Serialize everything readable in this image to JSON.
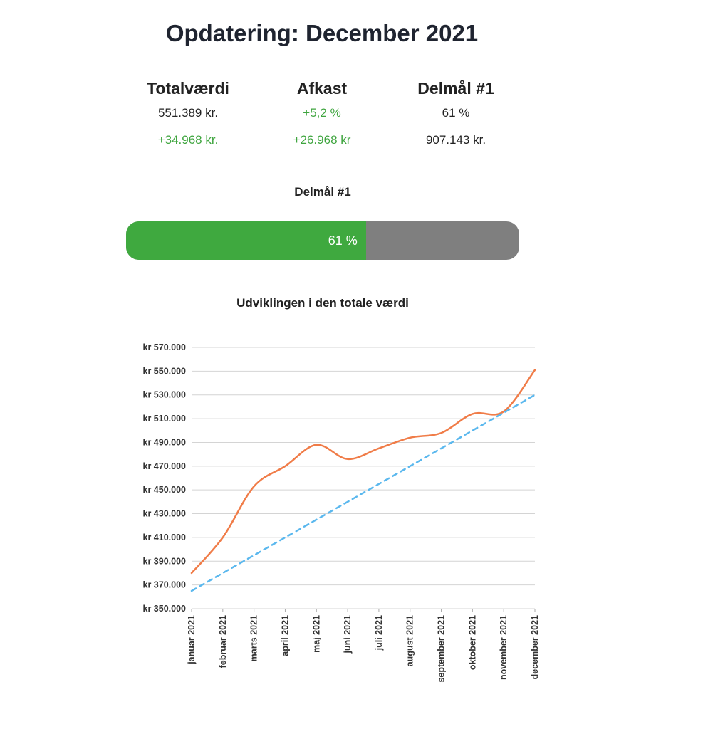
{
  "header": {
    "title": "Opdatering: December 2021"
  },
  "stats": [
    {
      "heading": "Totalværdi",
      "line1": "551.389 kr.",
      "line1_positive": false,
      "line2": "+34.968 kr.",
      "line2_positive": true
    },
    {
      "heading": "Afkast",
      "line1": "+5,2 %",
      "line1_positive": true,
      "line2": "+26.968 kr",
      "line2_positive": true
    },
    {
      "heading": "Delmål #1",
      "line1": "61 %",
      "line1_positive": false,
      "line2": "907.143 kr.",
      "line2_positive": false
    }
  ],
  "goal": {
    "label": "Delmål #1",
    "progress": 0.61,
    "progress_text": "61 %",
    "fill_color": "#3fa93f",
    "track_color": "#7f7f7f"
  },
  "chart_title": "Udviklingen i den totale værdi",
  "chart_data": {
    "type": "line",
    "title": "Udviklingen i den totale værdi",
    "xlabel": "",
    "ylabel": "",
    "categories": [
      "januar 2021",
      "februar 2021",
      "marts 2021",
      "april 2021",
      "maj 2021",
      "juni 2021",
      "juli 2021",
      "august 2021",
      "september 2021",
      "oktober 2021",
      "november 2021",
      "december 2021"
    ],
    "series": [
      {
        "style": "solid",
        "color": "#f07c48",
        "values": [
          380000,
          410000,
          453000,
          470000,
          488000,
          476000,
          485000,
          494000,
          498000,
          514000,
          516000,
          551000
        ]
      },
      {
        "style": "dashed",
        "color": "#5bb8ee",
        "values": [
          365000,
          380000,
          395000,
          410000,
          425000,
          440000,
          455000,
          470000,
          485000,
          500000,
          515000,
          530000
        ]
      }
    ],
    "ylim": [
      350000,
      570000
    ],
    "yticks": [
      350000,
      370000,
      390000,
      410000,
      430000,
      450000,
      470000,
      490000,
      510000,
      530000,
      550000,
      570000
    ],
    "ytick_labels": [
      "kr 350.000",
      "kr 370.000",
      "kr 390.000",
      "kr 410.000",
      "kr 430.000",
      "kr 450.000",
      "kr 470.000",
      "kr 490.000",
      "kr 510.000",
      "kr 530.000",
      "kr 550.000",
      "kr 570.000"
    ],
    "grid": true,
    "legend": "none"
  }
}
